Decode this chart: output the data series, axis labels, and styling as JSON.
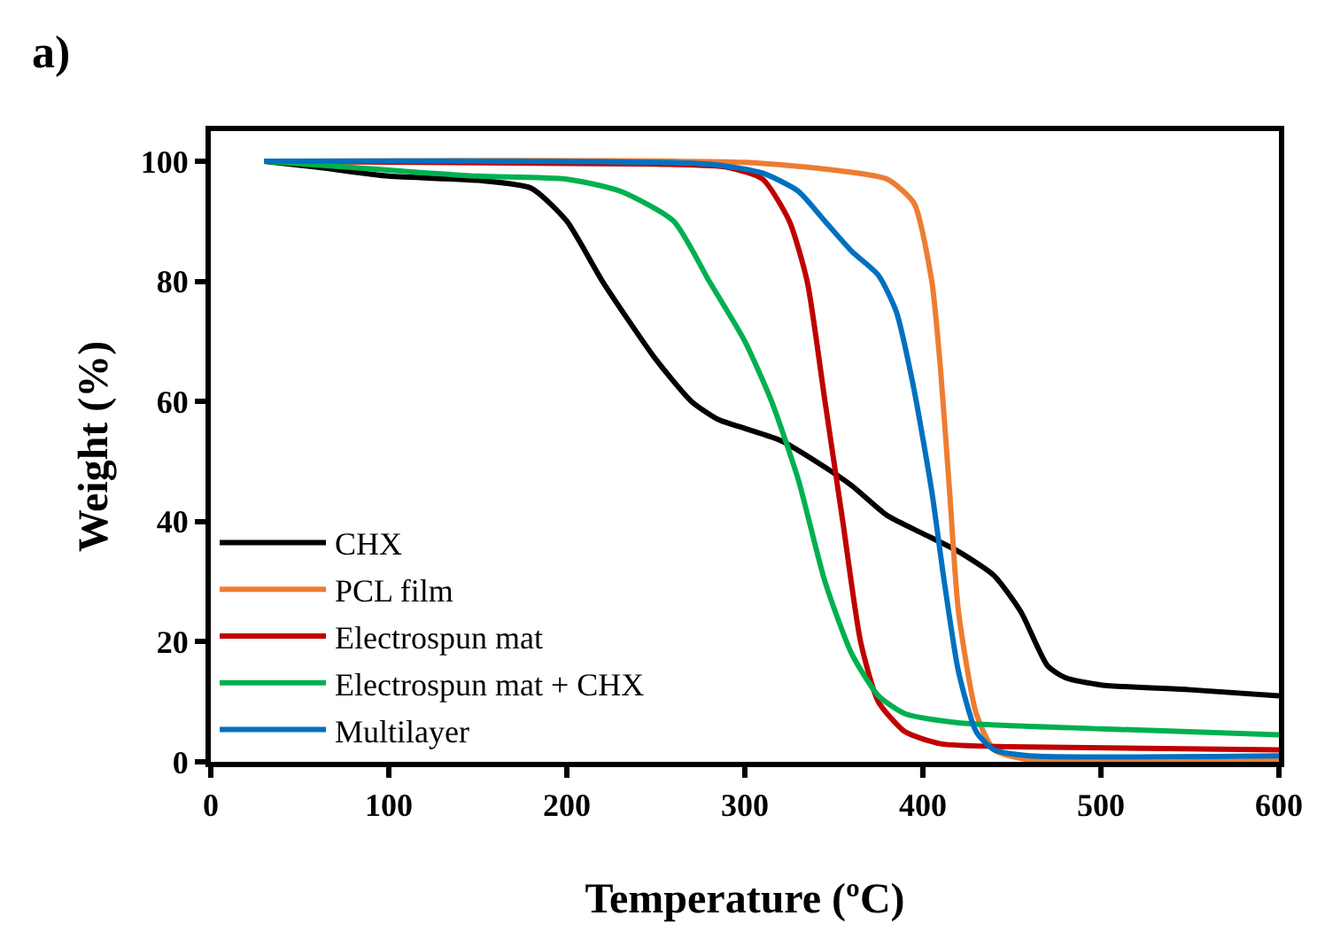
{
  "chart_data": {
    "type": "line",
    "xlabel": "Temperature (ºC)",
    "ylabel": "Weight (%)",
    "annotations": [
      "a)"
    ],
    "xlim": [
      0,
      600
    ],
    "xticks": [
      0,
      100,
      200,
      300,
      400,
      500,
      600
    ],
    "ylim": [
      0,
      105
    ],
    "yticks": [
      0,
      20,
      40,
      60,
      80,
      100
    ],
    "grid": false,
    "legend": "bottom left",
    "line_style": "solid",
    "marker": "none",
    "series": [
      {
        "name": "CHX",
        "color": "#000000",
        "x": [
          30,
          60,
          100,
          150,
          180,
          200,
          220,
          250,
          270,
          285,
          300,
          320,
          340,
          360,
          380,
          400,
          420,
          440,
          455,
          470,
          480,
          500,
          550,
          600
        ],
        "values": [
          100,
          99,
          97.5,
          96.8,
          95.5,
          90,
          80,
          67,
          60,
          57,
          55.5,
          53.5,
          50,
          46,
          41,
          38,
          35,
          31,
          25,
          16,
          14,
          12.8,
          12,
          11
        ]
      },
      {
        "name": "PCL film",
        "color": "#ed7d31",
        "x": [
          30,
          300,
          350,
          380,
          395,
          405,
          410,
          415,
          420,
          430,
          440,
          460,
          600
        ],
        "values": [
          100,
          99.8,
          98.5,
          97,
          93,
          80,
          65,
          45,
          25,
          8,
          2,
          0.3,
          0.2
        ]
      },
      {
        "name": "Electrospun mat",
        "color": "#c00000",
        "x": [
          30,
          250,
          290,
          310,
          325,
          335,
          345,
          355,
          365,
          375,
          390,
          410,
          450,
          600
        ],
        "values": [
          100,
          99.5,
          99,
          97,
          90,
          80,
          60,
          40,
          20,
          10,
          5,
          3,
          2.5,
          2
        ]
      },
      {
        "name": "Electrospun mat + CHX",
        "color": "#00b050",
        "x": [
          30,
          100,
          150,
          200,
          230,
          260,
          280,
          300,
          315,
          330,
          345,
          360,
          375,
          390,
          420,
          500,
          600
        ],
        "values": [
          100,
          98.5,
          97.5,
          97,
          95,
          90,
          80,
          70,
          60,
          47,
          30,
          18,
          11,
          8,
          6.5,
          5.5,
          4.5
        ]
      },
      {
        "name": "Multilayer",
        "color": "#0070c0",
        "x": [
          30,
          280,
          310,
          330,
          345,
          360,
          375,
          385,
          395,
          405,
          412,
          420,
          430,
          440,
          460,
          600
        ],
        "values": [
          100,
          99.5,
          98,
          95,
          90,
          85,
          81,
          75,
          62,
          45,
          30,
          15,
          5,
          2,
          1,
          1
        ]
      }
    ]
  }
}
